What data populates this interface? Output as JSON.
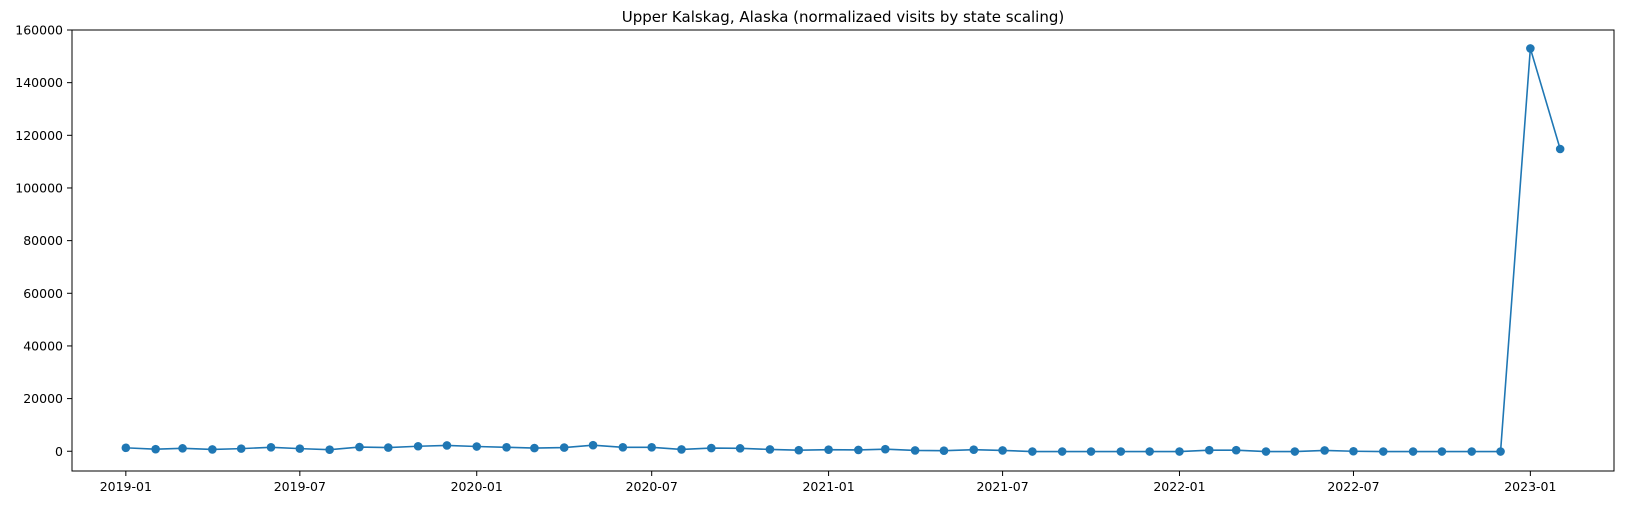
{
  "chart_data": {
    "type": "line",
    "title": "Upper Kalskag, Alaska (normalizaed visits by state scaling)",
    "xlabel": "",
    "ylabel": "",
    "x_ticks": [
      "2019-01",
      "2019-07",
      "2020-01",
      "2020-07",
      "2021-01",
      "2021-07",
      "2022-01",
      "2022-07",
      "2023-01"
    ],
    "y_ticks": [
      "0",
      "20000",
      "40000",
      "60000",
      "80000",
      "100000",
      "120000",
      "140000",
      "160000"
    ],
    "ylim": [
      -7500,
      160000
    ],
    "xlim": [
      "2018-11-06",
      "2023-03-29"
    ],
    "grid": false,
    "legend": "none",
    "series_color": "#1f77b4",
    "series": [
      {
        "marker": "o",
        "x": [
          "2019-01-01",
          "2019-02-01",
          "2019-03-01",
          "2019-04-01",
          "2019-05-01",
          "2019-06-01",
          "2019-07-01",
          "2019-08-01",
          "2019-09-01",
          "2019-10-01",
          "2019-11-01",
          "2019-12-01",
          "2020-01-01",
          "2020-02-01",
          "2020-03-01",
          "2020-04-01",
          "2020-05-01",
          "2020-06-01",
          "2020-07-01",
          "2020-08-01",
          "2020-09-01",
          "2020-10-01",
          "2020-11-01",
          "2020-12-01",
          "2021-01-01",
          "2021-02-01",
          "2021-03-01",
          "2021-04-01",
          "2021-05-01",
          "2021-06-01",
          "2021-07-01",
          "2021-08-01",
          "2021-09-01",
          "2021-10-01",
          "2021-11-01",
          "2021-12-01",
          "2022-01-01",
          "2022-02-01",
          "2022-03-01",
          "2022-04-01",
          "2022-05-01",
          "2022-06-01",
          "2022-07-01",
          "2022-08-01",
          "2022-09-01",
          "2022-10-01",
          "2022-11-01",
          "2022-12-01",
          "2023-01-01",
          "2023-02-01"
        ],
        "y": [
          1300,
          800,
          1100,
          700,
          1000,
          1500,
          1000,
          600,
          1600,
          1400,
          1900,
          2200,
          1800,
          1500,
          1200,
          1400,
          2300,
          1500,
          1500,
          700,
          1200,
          1100,
          700,
          400,
          600,
          500,
          800,
          300,
          200,
          600,
          300,
          -100,
          -100,
          -100,
          -100,
          -100,
          -100,
          400,
          400,
          -100,
          -100,
          300,
          0,
          -100,
          -100,
          -100,
          -100,
          -100,
          153000,
          114800
        ]
      }
    ]
  }
}
